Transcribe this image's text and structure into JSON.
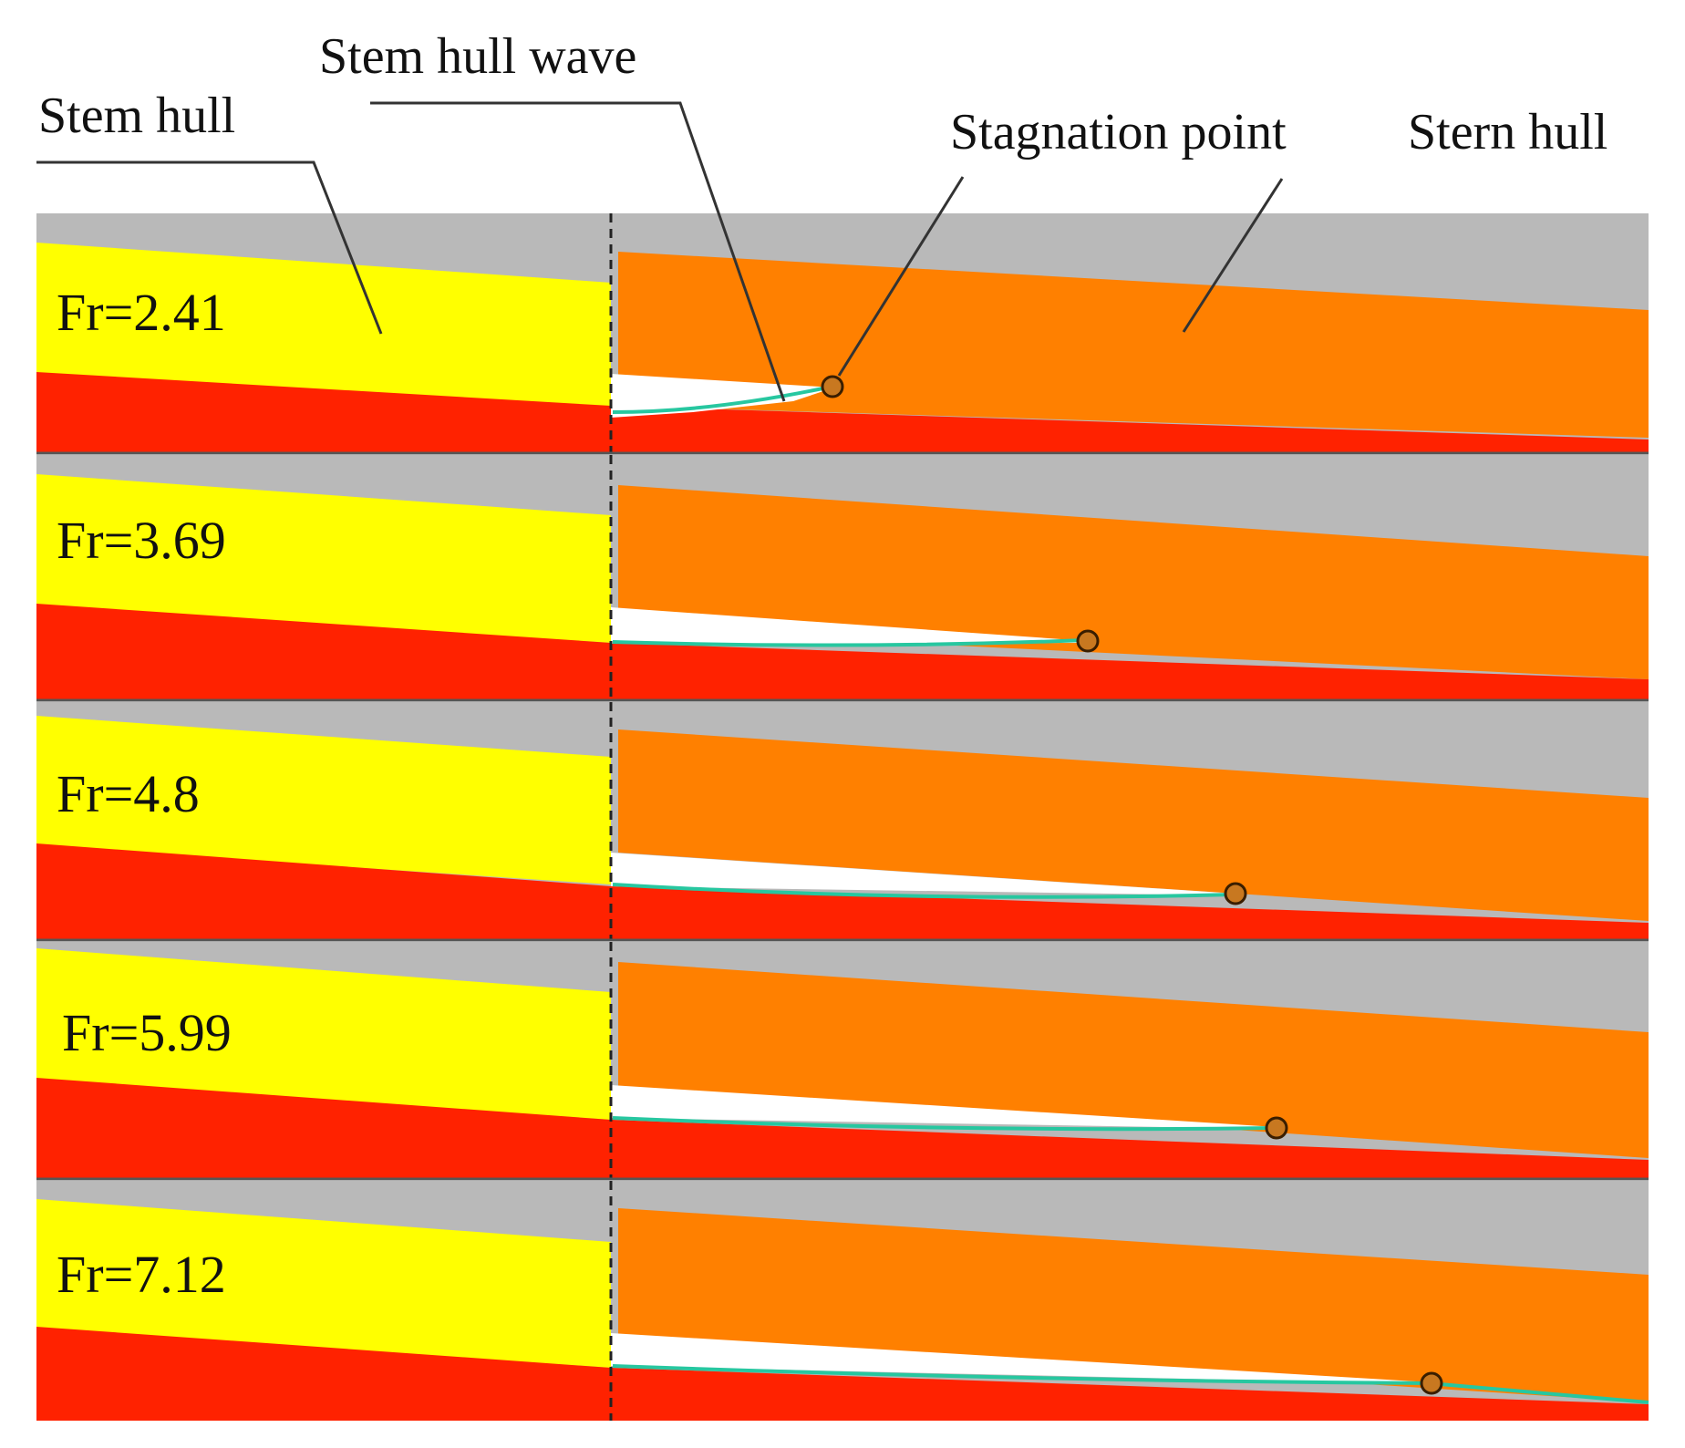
{
  "figure": {
    "callouts": {
      "stem_hull": "Stem hull",
      "stem_hull_wave": "Stem hull wave",
      "stagnation_point": "Stagnation point",
      "stern_hull": "Stern hull"
    },
    "panels": [
      {
        "label": "Fr=2.41",
        "froude": 2.41
      },
      {
        "label": "Fr=3.69",
        "froude": 3.69
      },
      {
        "label": "Fr=4.8",
        "froude": 4.8
      },
      {
        "label": "Fr=5.99",
        "froude": 5.99
      },
      {
        "label": "Fr=7.12",
        "froude": 7.12
      }
    ],
    "colors": {
      "background": "#b9b9b9",
      "stem_hull": "#ffff00",
      "stern_hull": "#ff8000",
      "water": "#ff2200",
      "cavity": "#ffffff",
      "step_line": "#222222",
      "stagnation_marker": "#c87820"
    }
  }
}
